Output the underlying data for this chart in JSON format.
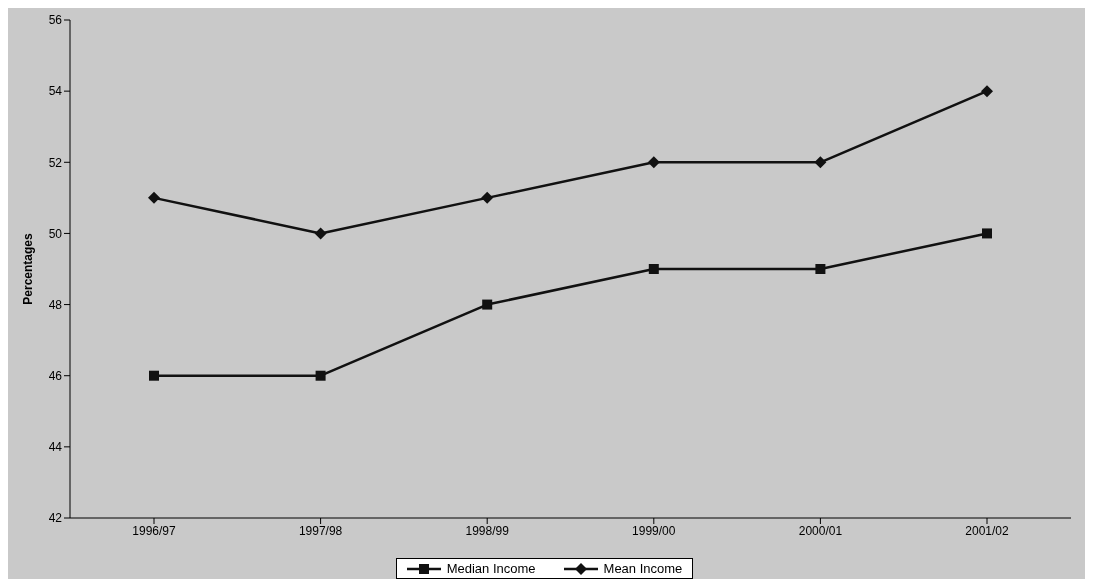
{
  "chart_data": {
    "type": "line",
    "ylabel": "Percentages",
    "categories": [
      "1996/97",
      "1997/98",
      "1998/99",
      "1999/00",
      "2000/01",
      "2001/02"
    ],
    "series": [
      {
        "name": "Median Income",
        "color": "#111111",
        "marker": "square",
        "values": [
          46,
          46,
          48,
          49,
          49,
          50
        ]
      },
      {
        "name": "Mean Income",
        "color": "#111111",
        "marker": "diamond",
        "values": [
          51,
          50,
          51,
          52,
          52,
          54
        ]
      }
    ],
    "ylim": [
      42,
      56
    ],
    "yticks": [
      42,
      44,
      46,
      48,
      50,
      52,
      54,
      56
    ],
    "grid": false,
    "legend": "bottom",
    "line_style": "solid"
  }
}
